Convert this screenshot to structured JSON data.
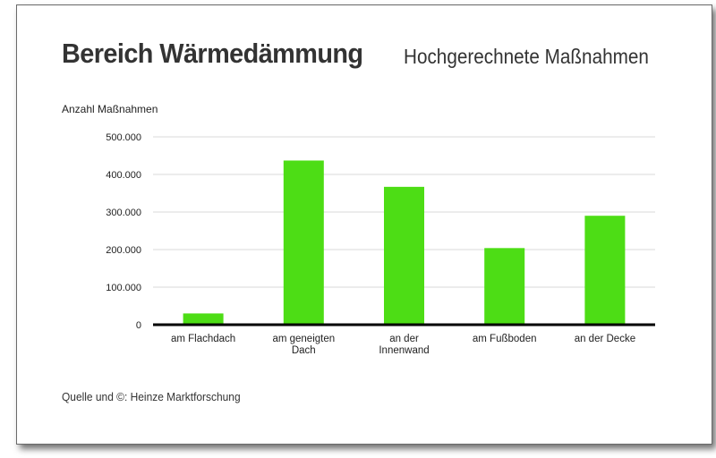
{
  "chart_data": {
    "type": "bar",
    "title": "Bereich Wärmedämmung",
    "subtitle": "Hochgerechnete Maßnahmen",
    "ylabel": "Anzahl Maßnahmen",
    "xlabel": "",
    "categories": [
      [
        "am Flachdach"
      ],
      [
        "am geneigten",
        "Dach"
      ],
      [
        "an der",
        "Innenwand"
      ],
      [
        "am Fußboden"
      ],
      [
        "an der Decke"
      ]
    ],
    "values": [
      30000,
      437000,
      367000,
      204000,
      290000
    ],
    "ylim": [
      0,
      500000
    ],
    "yticks": [
      0,
      100000,
      200000,
      300000,
      400000,
      500000
    ],
    "ytick_labels": [
      "0",
      "100.000",
      "200.000",
      "300.000",
      "400.000",
      "500.000"
    ],
    "grid": true,
    "bar_color": "#4ddd15",
    "axis_color": "#000000",
    "grid_color": "#d9d9d9"
  },
  "source": "Quelle und ©: Heinze Marktforschung"
}
